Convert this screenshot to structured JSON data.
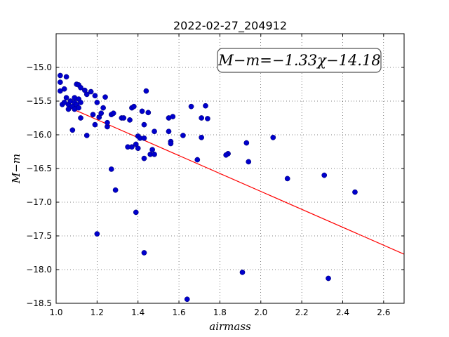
{
  "chart_data": {
    "type": "scatter",
    "title": "2022-02-27_204912",
    "xlabel": "airmass",
    "ylabel": "M−m",
    "xlim": [
      1.0,
      2.7
    ],
    "ylim": [
      -18.5,
      -14.5
    ],
    "y_inverted": true,
    "grid": true,
    "x_ticks": [
      "1.0",
      "1.2",
      "1.4",
      "1.6",
      "1.8",
      "2.0",
      "2.2",
      "2.4",
      "2.6"
    ],
    "y_ticks": [
      "−15.0",
      "−15.5",
      "−16.0",
      "−16.5",
      "−17.0",
      "−17.5",
      "−18.0",
      "−18.5"
    ],
    "annotation": "M−m=−1.33χ−14.18",
    "point_color": "#0000cc",
    "fit_color": "#ff0000",
    "fit": {
      "slope": -1.33,
      "intercept": -14.18,
      "x_range": [
        1.07,
        2.7
      ]
    },
    "points": [
      [
        1.02,
        -15.12
      ],
      [
        1.05,
        -15.14
      ],
      [
        1.02,
        -15.22
      ],
      [
        1.02,
        -15.35
      ],
      [
        1.04,
        -15.32
      ],
      [
        1.03,
        -15.55
      ],
      [
        1.04,
        -15.52
      ],
      [
        1.05,
        -15.45
      ],
      [
        1.06,
        -15.55
      ],
      [
        1.07,
        -15.5
      ],
      [
        1.06,
        -15.62
      ],
      [
        1.08,
        -15.58
      ],
      [
        1.09,
        -15.45
      ],
      [
        1.09,
        -15.52
      ],
      [
        1.1,
        -15.55
      ],
      [
        1.1,
        -15.25
      ],
      [
        1.11,
        -15.26
      ],
      [
        1.12,
        -15.3
      ],
      [
        1.11,
        -15.47
      ],
      [
        1.12,
        -15.52
      ],
      [
        1.09,
        -15.62
      ],
      [
        1.11,
        -15.6
      ],
      [
        1.08,
        -15.93
      ],
      [
        1.12,
        -15.75
      ],
      [
        1.14,
        -15.34
      ],
      [
        1.15,
        -15.4
      ],
      [
        1.17,
        -15.36
      ],
      [
        1.19,
        -15.42
      ],
      [
        1.2,
        -15.52
      ],
      [
        1.21,
        -15.74
      ],
      [
        1.22,
        -15.68
      ],
      [
        1.23,
        -15.6
      ],
      [
        1.24,
        -15.44
      ],
      [
        1.15,
        -16.01
      ],
      [
        1.18,
        -15.7
      ],
      [
        1.19,
        -15.85
      ],
      [
        1.25,
        -15.88
      ],
      [
        1.25,
        -15.82
      ],
      [
        1.27,
        -15.7
      ],
      [
        1.28,
        -15.68
      ],
      [
        1.32,
        -15.75
      ],
      [
        1.33,
        -15.75
      ],
      [
        1.36,
        -15.78
      ],
      [
        1.37,
        -15.6
      ],
      [
        1.38,
        -15.58
      ],
      [
        1.37,
        -16.18
      ],
      [
        1.39,
        -16.14
      ],
      [
        1.4,
        -16.2
      ],
      [
        1.4,
        -16.02
      ],
      [
        1.41,
        -16.05
      ],
      [
        1.42,
        -15.65
      ],
      [
        1.44,
        -15.35
      ],
      [
        1.43,
        -15.85
      ],
      [
        1.45,
        -15.67
      ],
      [
        1.43,
        -16.05
      ],
      [
        1.43,
        -16.35
      ],
      [
        1.46,
        -16.29
      ],
      [
        1.47,
        -16.22
      ],
      [
        1.48,
        -16.29
      ],
      [
        1.48,
        -15.95
      ],
      [
        1.55,
        -15.75
      ],
      [
        1.55,
        -15.95
      ],
      [
        1.56,
        -16.1
      ],
      [
        1.56,
        -16.13
      ],
      [
        1.57,
        -15.73
      ],
      [
        1.62,
        -16.01
      ],
      [
        1.66,
        -15.58
      ],
      [
        1.69,
        -16.37
      ],
      [
        1.71,
        -15.75
      ],
      [
        1.71,
        -16.04
      ],
      [
        1.73,
        -15.57
      ],
      [
        1.74,
        -15.76
      ],
      [
        1.27,
        -16.51
      ],
      [
        1.29,
        -16.82
      ],
      [
        1.35,
        -16.18
      ],
      [
        1.84,
        -16.28
      ],
      [
        1.83,
        -16.3
      ],
      [
        1.93,
        -16.12
      ],
      [
        1.94,
        -16.4
      ],
      [
        2.06,
        -16.04
      ],
      [
        2.13,
        -16.65
      ],
      [
        2.31,
        -16.6
      ],
      [
        2.46,
        -16.85
      ],
      [
        1.2,
        -17.47
      ],
      [
        1.39,
        -17.15
      ],
      [
        1.43,
        -17.75
      ],
      [
        1.91,
        -18.04
      ],
      [
        2.33,
        -18.13
      ],
      [
        1.64,
        -18.44
      ]
    ]
  }
}
